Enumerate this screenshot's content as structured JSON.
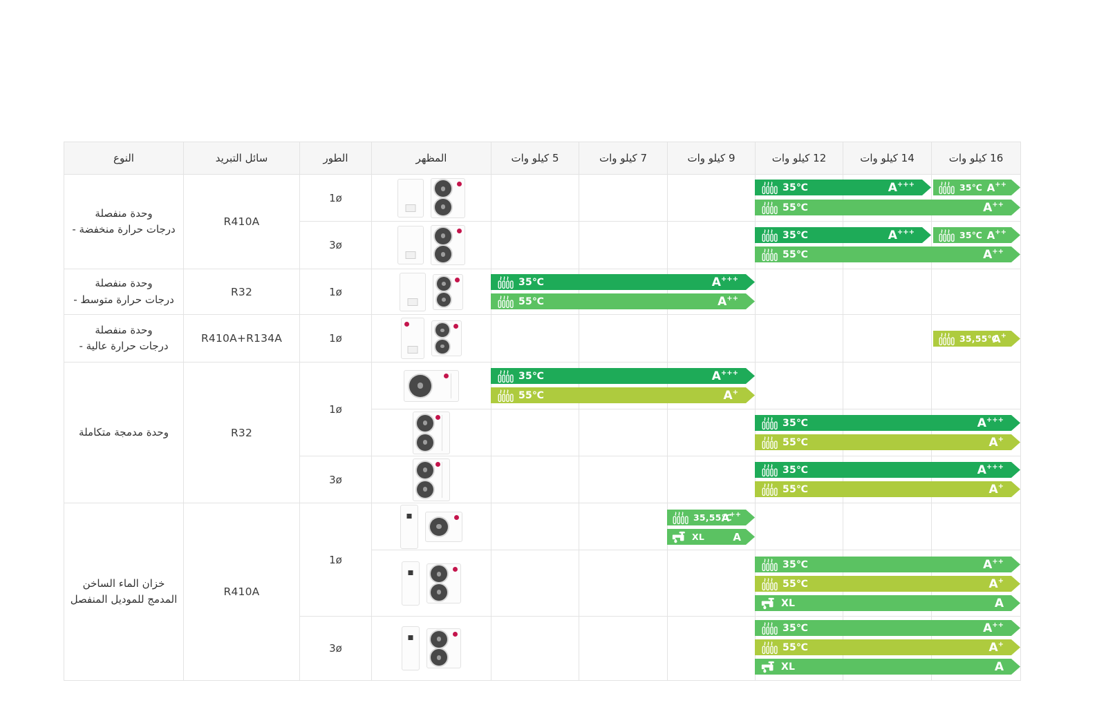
{
  "colors": {
    "dark_green": "#1EAB58",
    "mid_green": "#5BC262",
    "lime_green": "#AECB3E",
    "header_bg": "#f6f6f6",
    "grid_border": "#e3e3e3",
    "lg_red": "#c4154c"
  },
  "table": {
    "headers": {
      "type": "النوع",
      "refrigerant": "سائل التبريد",
      "phase": "الطور",
      "appearance": "المظهر",
      "kw5": "5 كيلو وات",
      "kw7": "7 كيلو وات",
      "kw9": "9 كيلو وات",
      "kw12": "12 كيلو وات",
      "kw14": "14 كيلو وات",
      "kw16": "16 كيلو وات"
    },
    "groups": [
      {
        "type": "وحدة منفصلة\n- درجات حرارة منخفضة",
        "refrigerant": "R410A",
        "phases": [
          "1ø",
          "3ø"
        ],
        "units": [
          "indoor-wall-unit",
          "outdoor-unit-dual-fan"
        ]
      },
      {
        "type": "وحدة منفصلة\n- درجات حرارة متوسط",
        "refrigerant": "R32",
        "phases": [
          "1ø"
        ],
        "units": [
          "indoor-wall-unit",
          "outdoor-unit-single-fan"
        ]
      },
      {
        "type": "وحدة منفصلة\n- درجات حرارة عالية",
        "refrigerant": "R410A+R134A",
        "phases": [
          "1ø"
        ],
        "units": [
          "floor-standing-unit",
          "outdoor-unit-dual-fan"
        ]
      },
      {
        "type": "وحدة مدمجة متكاملة",
        "refrigerant": "R32",
        "phases": [
          "1ø",
          "3ø"
        ],
        "units": [
          "monobloc-horizontal-unit",
          "monobloc-vertical-unit"
        ]
      },
      {
        "type": "خزان الماء الساخن\nالمدمج للموديل المنفصل",
        "refrigerant": "R410A",
        "phases": [
          "1ø",
          "3ø"
        ],
        "units": [
          "hot-water-tank-unit",
          "outdoor-unit-dual-fan"
        ]
      }
    ],
    "badges": {
      "r1b1": {
        "temp": "35℃",
        "rating": "A",
        "sup": "+++"
      },
      "r1b2": {
        "temp": "35℃",
        "rating": "A",
        "sup": "++"
      },
      "r1b3": {
        "temp": "55℃",
        "rating": "A",
        "sup": "++"
      },
      "r2b1": {
        "temp": "35℃",
        "rating": "A",
        "sup": "+++"
      },
      "r2b2": {
        "temp": "35℃",
        "rating": "A",
        "sup": "++"
      },
      "r2b3": {
        "temp": "55℃",
        "rating": "A",
        "sup": "++"
      },
      "r3b1": {
        "temp": "35℃",
        "rating": "A",
        "sup": "+++"
      },
      "r3b2": {
        "temp": "55℃",
        "rating": "A",
        "sup": "++"
      },
      "r4b1": {
        "temp": "35,55℃",
        "rating": "A",
        "sup": "+"
      },
      "r5b1": {
        "temp": "35℃",
        "rating": "A",
        "sup": "+++"
      },
      "r5b2": {
        "temp": "55℃",
        "rating": "A",
        "sup": "+"
      },
      "r6b1": {
        "temp": "35℃",
        "rating": "A",
        "sup": "+++"
      },
      "r6b2": {
        "temp": "55℃",
        "rating": "A",
        "sup": "+"
      },
      "r7b1": {
        "temp": "35℃",
        "rating": "A",
        "sup": "+++"
      },
      "r7b2": {
        "temp": "55℃",
        "rating": "A",
        "sup": "+"
      },
      "r8b1": {
        "temp": "35,55℃",
        "rating": "A",
        "sup": "++"
      },
      "r8b2": {
        "temp": "XL",
        "rating": "A",
        "sup": ""
      },
      "r9b1": {
        "temp": "35℃",
        "rating": "A",
        "sup": "++"
      },
      "r9b2": {
        "temp": "55℃",
        "rating": "A",
        "sup": "+"
      },
      "r9b3": {
        "temp": "XL",
        "rating": "A",
        "sup": ""
      },
      "r10b1": {
        "temp": "35℃",
        "rating": "A",
        "sup": "++"
      },
      "r10b2": {
        "temp": "55℃",
        "rating": "A",
        "sup": "+"
      },
      "r10b3": {
        "temp": "XL",
        "rating": "A",
        "sup": ""
      }
    }
  }
}
